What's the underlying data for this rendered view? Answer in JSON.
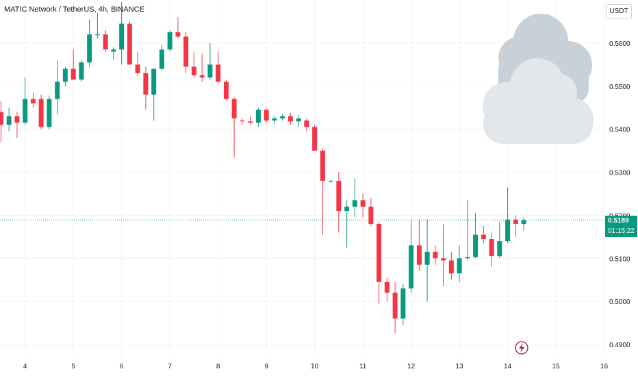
{
  "header": {
    "title": "MATIC Network / TetherUS, 4h, BINANCE"
  },
  "currency_button": {
    "label": "USDT"
  },
  "price_label": {
    "value": "0.5189",
    "countdown": "01:15:22"
  },
  "icons": {
    "weather": "cloud-icon",
    "event_marker": "lightning-bolt-icon"
  },
  "chart_data": {
    "type": "candlestick",
    "symbol": "MATIC/USDT",
    "interval": "4h",
    "exchange": "BINANCE",
    "x_ticks": [
      "4",
      "5",
      "6",
      "7",
      "8",
      "9",
      "10",
      "11",
      "12",
      "13",
      "14",
      "15",
      "16"
    ],
    "y_ticks": [
      "0.5600",
      "0.5500",
      "0.5400",
      "0.5300",
      "0.5200",
      "0.5100",
      "0.5000",
      "0.4900"
    ],
    "y_tick_values": [
      0.56,
      0.55,
      0.54,
      0.53,
      0.52,
      0.51,
      0.5,
      0.49
    ],
    "ylim": [
      0.4873,
      0.57
    ],
    "xlim": [
      3.48,
      16.02
    ],
    "last_price": 0.5189,
    "grid": true,
    "colors": {
      "up": "#089981",
      "down": "#f23645",
      "grid": "#f0f3fa",
      "text": "#131722",
      "axis_text": "#131722"
    },
    "candles": [
      {
        "t": 3.5,
        "o": 0.544,
        "h": 0.5465,
        "l": 0.537,
        "c": 0.541
      },
      {
        "t": 3.667,
        "o": 0.541,
        "h": 0.545,
        "l": 0.5395,
        "c": 0.543
      },
      {
        "t": 3.833,
        "o": 0.543,
        "h": 0.544,
        "l": 0.538,
        "c": 0.5415
      },
      {
        "t": 4.0,
        "o": 0.5415,
        "h": 0.552,
        "l": 0.541,
        "c": 0.547
      },
      {
        "t": 4.167,
        "o": 0.547,
        "h": 0.5485,
        "l": 0.545,
        "c": 0.546
      },
      {
        "t": 4.333,
        "o": 0.547,
        "h": 0.548,
        "l": 0.54,
        "c": 0.5405
      },
      {
        "t": 4.5,
        "o": 0.5405,
        "h": 0.5478,
        "l": 0.54,
        "c": 0.547
      },
      {
        "t": 4.667,
        "o": 0.547,
        "h": 0.556,
        "l": 0.5435,
        "c": 0.551
      },
      {
        "t": 4.833,
        "o": 0.551,
        "h": 0.5545,
        "l": 0.55,
        "c": 0.554
      },
      {
        "t": 5.0,
        "o": 0.554,
        "h": 0.5585,
        "l": 0.5515,
        "c": 0.5515
      },
      {
        "t": 5.167,
        "o": 0.5515,
        "h": 0.556,
        "l": 0.551,
        "c": 0.5555
      },
      {
        "t": 5.333,
        "o": 0.5555,
        "h": 0.5655,
        "l": 0.5545,
        "c": 0.562
      },
      {
        "t": 5.5,
        "o": 0.562,
        "h": 0.567,
        "l": 0.561,
        "c": 0.562
      },
      {
        "t": 5.667,
        "o": 0.562,
        "h": 0.563,
        "l": 0.558,
        "c": 0.5585
      },
      {
        "t": 5.833,
        "o": 0.558,
        "h": 0.559,
        "l": 0.556,
        "c": 0.5585
      },
      {
        "t": 6.0,
        "o": 0.5585,
        "h": 0.5695,
        "l": 0.555,
        "c": 0.5645
      },
      {
        "t": 6.167,
        "o": 0.5645,
        "h": 0.565,
        "l": 0.555,
        "c": 0.555
      },
      {
        "t": 6.333,
        "o": 0.555,
        "h": 0.558,
        "l": 0.5525,
        "c": 0.553
      },
      {
        "t": 6.5,
        "o": 0.553,
        "h": 0.5545,
        "l": 0.5445,
        "c": 0.548
      },
      {
        "t": 6.667,
        "o": 0.548,
        "h": 0.554,
        "l": 0.542,
        "c": 0.554
      },
      {
        "t": 6.833,
        "o": 0.554,
        "h": 0.5595,
        "l": 0.5535,
        "c": 0.5585
      },
      {
        "t": 7.0,
        "o": 0.5585,
        "h": 0.563,
        "l": 0.558,
        "c": 0.5625
      },
      {
        "t": 7.167,
        "o": 0.5625,
        "h": 0.566,
        "l": 0.561,
        "c": 0.5615
      },
      {
        "t": 7.333,
        "o": 0.5615,
        "h": 0.5625,
        "l": 0.553,
        "c": 0.5545
      },
      {
        "t": 7.5,
        "o": 0.5545,
        "h": 0.558,
        "l": 0.552,
        "c": 0.5525
      },
      {
        "t": 7.667,
        "o": 0.5525,
        "h": 0.5575,
        "l": 0.551,
        "c": 0.552
      },
      {
        "t": 7.833,
        "o": 0.552,
        "h": 0.56,
        "l": 0.5515,
        "c": 0.555
      },
      {
        "t": 8.0,
        "o": 0.555,
        "h": 0.558,
        "l": 0.5505,
        "c": 0.551
      },
      {
        "t": 8.167,
        "o": 0.551,
        "h": 0.5515,
        "l": 0.5465,
        "c": 0.547
      },
      {
        "t": 8.333,
        "o": 0.547,
        "h": 0.5475,
        "l": 0.5335,
        "c": 0.5425
      },
      {
        "t": 8.5,
        "o": 0.542,
        "h": 0.5425,
        "l": 0.541,
        "c": 0.5418
      },
      {
        "t": 8.667,
        "o": 0.5418,
        "h": 0.543,
        "l": 0.541,
        "c": 0.5415
      },
      {
        "t": 8.833,
        "o": 0.5415,
        "h": 0.545,
        "l": 0.5405,
        "c": 0.5445
      },
      {
        "t": 9.0,
        "o": 0.5445,
        "h": 0.5448,
        "l": 0.5415,
        "c": 0.542
      },
      {
        "t": 9.167,
        "o": 0.542,
        "h": 0.543,
        "l": 0.541,
        "c": 0.5425
      },
      {
        "t": 9.333,
        "o": 0.5425,
        "h": 0.5435,
        "l": 0.542,
        "c": 0.543
      },
      {
        "t": 9.5,
        "o": 0.543,
        "h": 0.5438,
        "l": 0.541,
        "c": 0.5418
      },
      {
        "t": 9.667,
        "o": 0.5418,
        "h": 0.5432,
        "l": 0.5405,
        "c": 0.5425
      },
      {
        "t": 9.833,
        "o": 0.542,
        "h": 0.5425,
        "l": 0.5395,
        "c": 0.5405
      },
      {
        "t": 10.0,
        "o": 0.5405,
        "h": 0.541,
        "l": 0.535,
        "c": 0.535
      },
      {
        "t": 10.167,
        "o": 0.535,
        "h": 0.5355,
        "l": 0.5155,
        "c": 0.528
      },
      {
        "t": 10.333,
        "o": 0.5278,
        "h": 0.5283,
        "l": 0.5275,
        "c": 0.528
      },
      {
        "t": 10.5,
        "o": 0.528,
        "h": 0.53,
        "l": 0.516,
        "c": 0.521
      },
      {
        "t": 10.667,
        "o": 0.521,
        "h": 0.5235,
        "l": 0.5125,
        "c": 0.522
      },
      {
        "t": 10.833,
        "o": 0.522,
        "h": 0.5285,
        "l": 0.5195,
        "c": 0.5235
      },
      {
        "t": 11.0,
        "o": 0.5235,
        "h": 0.525,
        "l": 0.5195,
        "c": 0.522
      },
      {
        "t": 11.167,
        "o": 0.522,
        "h": 0.524,
        "l": 0.5175,
        "c": 0.518
      },
      {
        "t": 11.333,
        "o": 0.518,
        "h": 0.5185,
        "l": 0.4995,
        "c": 0.5045
      },
      {
        "t": 11.5,
        "o": 0.5045,
        "h": 0.5055,
        "l": 0.5,
        "c": 0.502
      },
      {
        "t": 11.667,
        "o": 0.502,
        "h": 0.5045,
        "l": 0.4925,
        "c": 0.496
      },
      {
        "t": 11.833,
        "o": 0.496,
        "h": 0.504,
        "l": 0.4945,
        "c": 0.503
      },
      {
        "t": 12.0,
        "o": 0.503,
        "h": 0.519,
        "l": 0.502,
        "c": 0.513
      },
      {
        "t": 12.167,
        "o": 0.513,
        "h": 0.519,
        "l": 0.507,
        "c": 0.5085
      },
      {
        "t": 12.333,
        "o": 0.5085,
        "h": 0.519,
        "l": 0.5,
        "c": 0.5115
      },
      {
        "t": 12.5,
        "o": 0.5115,
        "h": 0.513,
        "l": 0.5085,
        "c": 0.51
      },
      {
        "t": 12.667,
        "o": 0.51,
        "h": 0.518,
        "l": 0.5035,
        "c": 0.5095
      },
      {
        "t": 12.833,
        "o": 0.5095,
        "h": 0.5115,
        "l": 0.505,
        "c": 0.5065
      },
      {
        "t": 13.0,
        "o": 0.5065,
        "h": 0.513,
        "l": 0.5045,
        "c": 0.51
      },
      {
        "t": 13.167,
        "o": 0.51,
        "h": 0.5235,
        "l": 0.5095,
        "c": 0.5103
      },
      {
        "t": 13.333,
        "o": 0.5103,
        "h": 0.5205,
        "l": 0.51,
        "c": 0.5155
      },
      {
        "t": 13.5,
        "o": 0.5155,
        "h": 0.5175,
        "l": 0.5135,
        "c": 0.5145
      },
      {
        "t": 13.667,
        "o": 0.5145,
        "h": 0.516,
        "l": 0.508,
        "c": 0.5105
      },
      {
        "t": 13.833,
        "o": 0.5105,
        "h": 0.5185,
        "l": 0.51,
        "c": 0.514
      },
      {
        "t": 14.0,
        "o": 0.514,
        "h": 0.5265,
        "l": 0.5135,
        "c": 0.519
      },
      {
        "t": 14.167,
        "o": 0.519,
        "h": 0.52,
        "l": 0.515,
        "c": 0.518
      },
      {
        "t": 14.333,
        "o": 0.518,
        "h": 0.5195,
        "l": 0.5165,
        "c": 0.5189
      }
    ]
  }
}
